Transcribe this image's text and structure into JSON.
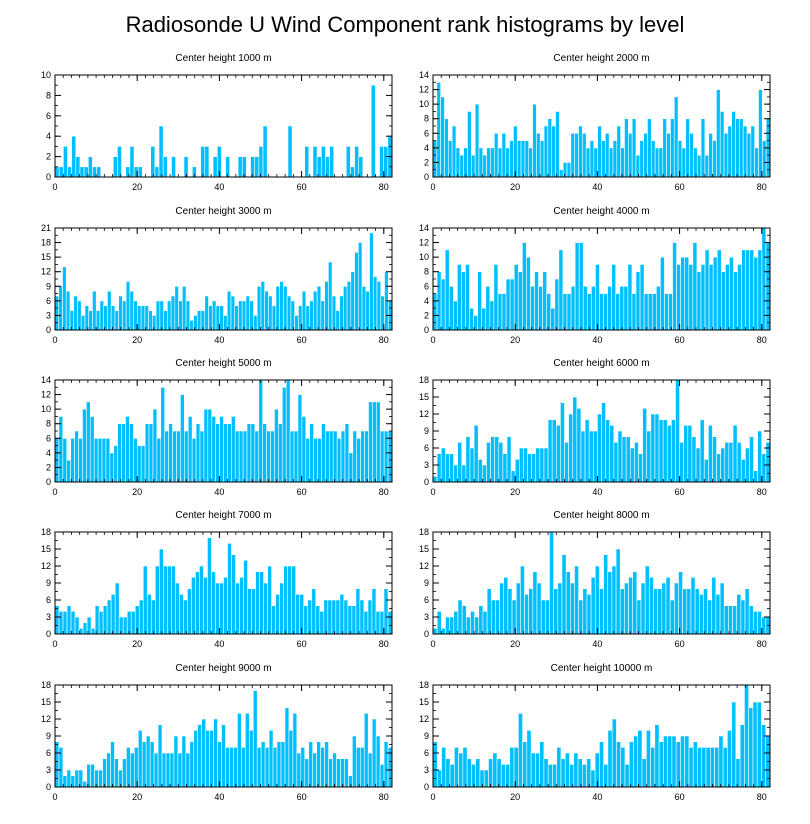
{
  "title": "Radiosonde U Wind Component rank histograms by level",
  "colors": {
    "bar": "#00bfff",
    "bar_edge": "#ffffff",
    "axis": "#000000"
  },
  "chart_data": [
    {
      "type": "bar",
      "title": "Center height 1000 m",
      "xlim": [
        0,
        82
      ],
      "ylim": [
        0,
        10
      ],
      "xticks": [
        0,
        20,
        40,
        60,
        80
      ],
      "yticks": [
        0,
        2,
        4,
        6,
        8,
        10
      ],
      "values": [
        1,
        1,
        3,
        1,
        4,
        2,
        1,
        1,
        2,
        1,
        1,
        0,
        0,
        0,
        2,
        3,
        0,
        1,
        3,
        1,
        1,
        0,
        0,
        3,
        1,
        5,
        2,
        0,
        2,
        0,
        0,
        2,
        0,
        1,
        0,
        3,
        3,
        0,
        2,
        3,
        0,
        2,
        0,
        0,
        2,
        2,
        0,
        2,
        2,
        3,
        5,
        0,
        0,
        0,
        0,
        0,
        5,
        0,
        0,
        0,
        3,
        0,
        3,
        2,
        3,
        2,
        3,
        0,
        0,
        0,
        3,
        1,
        3,
        2,
        0,
        0,
        9,
        0,
        3,
        3,
        4
      ]
    },
    {
      "type": "bar",
      "title": "Center height 2000 m",
      "xlim": [
        0,
        82
      ],
      "ylim": [
        0,
        14
      ],
      "xticks": [
        0,
        20,
        40,
        60,
        80
      ],
      "yticks": [
        0,
        2,
        4,
        6,
        8,
        10,
        12,
        14
      ],
      "values": [
        5,
        13,
        11,
        8,
        5,
        7,
        4,
        3,
        4,
        9,
        3,
        10,
        4,
        3,
        4,
        4,
        6,
        4,
        6,
        4,
        5,
        7,
        5,
        5,
        5,
        4,
        10,
        6,
        5,
        7,
        8,
        7,
        9,
        1,
        2,
        2,
        6,
        6,
        7,
        6,
        4,
        5,
        4,
        7,
        5,
        6,
        4,
        5,
        7,
        4,
        8,
        6,
        8,
        3,
        5,
        6,
        8,
        5,
        4,
        4,
        8,
        6,
        8,
        11,
        5,
        4,
        8,
        6,
        4,
        3,
        8,
        3,
        6,
        5,
        12,
        9,
        6,
        7,
        9,
        8,
        8,
        7,
        6,
        7,
        4,
        12,
        5,
        8
      ]
    },
    {
      "type": "bar",
      "title": "Center height 3000 m",
      "xlim": [
        0,
        82
      ],
      "ylim": [
        0,
        21
      ],
      "xticks": [
        0,
        20,
        40,
        60,
        80
      ],
      "yticks": [
        0,
        3,
        6,
        9,
        12,
        15,
        18,
        21
      ],
      "values": [
        7,
        9,
        13,
        8,
        4,
        7,
        6,
        3,
        5,
        4,
        8,
        4,
        6,
        5,
        8,
        5,
        4,
        7,
        6,
        10,
        8,
        6,
        5,
        5,
        5,
        4,
        3,
        6,
        6,
        4,
        6,
        7,
        9,
        6,
        9,
        6,
        2,
        3,
        4,
        4,
        7,
        5,
        6,
        5,
        5,
        3,
        8,
        7,
        5,
        6,
        6,
        7,
        6,
        3,
        9,
        10,
        8,
        7,
        5,
        9,
        10,
        9,
        7,
        6,
        3,
        5,
        8,
        5,
        6,
        8,
        9,
        6,
        10,
        14,
        7,
        4,
        7,
        9,
        10,
        12,
        16,
        18,
        9,
        8,
        20,
        11,
        10,
        7,
        12,
        6
      ]
    },
    {
      "type": "bar",
      "title": "Center height 4000 m",
      "xlim": [
        0,
        82
      ],
      "ylim": [
        0,
        14
      ],
      "xticks": [
        0,
        20,
        40,
        60,
        80
      ],
      "yticks": [
        0,
        2,
        4,
        6,
        8,
        10,
        12,
        14
      ],
      "values": [
        5,
        8,
        7,
        11,
        6,
        4,
        9,
        8,
        9,
        3,
        2,
        8,
        3,
        6,
        4,
        9,
        5,
        5,
        7,
        7,
        9,
        8,
        12,
        10,
        6,
        8,
        6,
        8,
        5,
        3,
        7,
        11,
        5,
        5,
        6,
        12,
        12,
        6,
        5,
        6,
        9,
        5,
        5,
        6,
        9,
        5,
        6,
        6,
        9,
        5,
        8,
        9,
        5,
        5,
        5,
        6,
        10,
        5,
        5,
        12,
        9,
        10,
        10,
        9,
        12,
        8,
        9,
        11,
        9,
        10,
        11,
        8,
        9,
        10,
        8,
        9,
        11,
        11,
        11,
        10,
        11,
        14,
        12
      ]
    },
    {
      "type": "bar",
      "title": "Center height 5000 m",
      "xlim": [
        0,
        82
      ],
      "ylim": [
        0,
        14
      ],
      "xticks": [
        0,
        20,
        40,
        60,
        80
      ],
      "yticks": [
        0,
        2,
        4,
        6,
        8,
        10,
        12,
        14
      ],
      "values": [
        6,
        9,
        6,
        3,
        6,
        7,
        6,
        10,
        11,
        9,
        6,
        6,
        6,
        6,
        4,
        5,
        8,
        8,
        9,
        8,
        6,
        5,
        5,
        8,
        8,
        10,
        6,
        13,
        7,
        8,
        7,
        7,
        12,
        7,
        9,
        6,
        8,
        7,
        10,
        10,
        9,
        8,
        9,
        8,
        8,
        9,
        7,
        7,
        7,
        8,
        8,
        7,
        14,
        8,
        7,
        7,
        10,
        8,
        13,
        14,
        7,
        7,
        12,
        9,
        6,
        8,
        6,
        6,
        8,
        7,
        7,
        7,
        6,
        7,
        8,
        4,
        7,
        6,
        7,
        7,
        11,
        11,
        11,
        7,
        7,
        7
      ]
    },
    {
      "type": "bar",
      "title": "Center height 6000 m",
      "xlim": [
        0,
        82
      ],
      "ylim": [
        0,
        18
      ],
      "xticks": [
        0,
        20,
        40,
        60,
        80
      ],
      "yticks": [
        0,
        3,
        6,
        9,
        12,
        15,
        18
      ],
      "values": [
        1,
        5,
        6,
        5,
        5,
        3,
        7,
        3,
        8,
        6,
        10,
        4,
        3,
        7,
        8,
        8,
        7,
        5,
        8,
        2,
        4,
        6,
        6,
        5,
        5,
        6,
        6,
        6,
        11,
        11,
        10,
        14,
        7,
        12,
        15,
        13,
        9,
        11,
        9,
        9,
        12,
        14,
        11,
        10,
        7,
        9,
        8,
        8,
        6,
        7,
        5,
        13,
        9,
        12,
        12,
        11,
        11,
        10,
        11,
        18,
        7,
        10,
        10,
        8,
        6,
        11,
        4,
        10,
        8,
        5,
        6,
        7,
        7,
        10,
        7,
        4,
        6,
        8,
        2,
        9,
        5,
        7
      ]
    },
    {
      "type": "bar",
      "title": "Center height 7000 m",
      "xlim": [
        0,
        82
      ],
      "ylim": [
        0,
        18
      ],
      "xticks": [
        0,
        20,
        40,
        60,
        80
      ],
      "yticks": [
        0,
        3,
        6,
        9,
        12,
        15,
        18
      ],
      "values": [
        5,
        4,
        4,
        5,
        4,
        3,
        1,
        2,
        3,
        1,
        5,
        4,
        5,
        6,
        7,
        9,
        3,
        3,
        4,
        4,
        5,
        6,
        12,
        7,
        6,
        12,
        15,
        12,
        12,
        12,
        9,
        7,
        6,
        8,
        10,
        11,
        12,
        10,
        17,
        11,
        9,
        9,
        10,
        16,
        14,
        9,
        10,
        13,
        8,
        8,
        11,
        11,
        9,
        12,
        5,
        7,
        9,
        12,
        12,
        12,
        7,
        7,
        5,
        6,
        8,
        5,
        4,
        6,
        6,
        6,
        6,
        7,
        6,
        5,
        5,
        8,
        6,
        4,
        6,
        8,
        4,
        4,
        8,
        4
      ]
    },
    {
      "type": "bar",
      "title": "Center height 8000 m",
      "xlim": [
        0,
        82
      ],
      "ylim": [
        0,
        18
      ],
      "xticks": [
        0,
        20,
        40,
        60,
        80
      ],
      "yticks": [
        0,
        3,
        6,
        9,
        12,
        15,
        18
      ],
      "values": [
        1,
        4,
        1,
        3,
        3,
        4,
        6,
        5,
        3,
        4,
        3,
        5,
        4,
        8,
        6,
        6,
        9,
        10,
        8,
        6,
        9,
        12,
        7,
        8,
        11,
        9,
        6,
        6,
        18,
        8,
        9,
        14,
        11,
        9,
        12,
        6,
        8,
        7,
        10,
        12,
        8,
        14,
        11,
        12,
        15,
        8,
        9,
        10,
        11,
        6,
        9,
        12,
        10,
        8,
        8,
        9,
        10,
        6,
        9,
        11,
        8,
        8,
        10,
        8,
        7,
        8,
        6,
        10,
        7,
        9,
        5,
        5,
        5,
        7,
        6,
        8,
        5,
        4,
        4,
        3,
        3
      ]
    },
    {
      "type": "bar",
      "title": "Center height 9000 m",
      "xlim": [
        0,
        82
      ],
      "ylim": [
        0,
        18
      ],
      "xticks": [
        0,
        20,
        40,
        60,
        80
      ],
      "yticks": [
        0,
        3,
        6,
        9,
        12,
        15,
        18
      ],
      "values": [
        8,
        7,
        2,
        3,
        2,
        3,
        3,
        1,
        4,
        4,
        3,
        3,
        5,
        6,
        8,
        5,
        3,
        5,
        7,
        6,
        7,
        10,
        8,
        9,
        8,
        6,
        11,
        6,
        6,
        6,
        9,
        6,
        9,
        6,
        8,
        10,
        11,
        12,
        10,
        10,
        12,
        8,
        11,
        7,
        7,
        7,
        13,
        7,
        13,
        10,
        17,
        7,
        8,
        7,
        10,
        7,
        8,
        8,
        14,
        10,
        13,
        6,
        7,
        5,
        8,
        6,
        8,
        7,
        8,
        5,
        6,
        5,
        5,
        5,
        2,
        9,
        7,
        7,
        13,
        6,
        12,
        9,
        4,
        8,
        7
      ]
    },
    {
      "type": "bar",
      "title": "Center height 10000 m",
      "xlim": [
        0,
        82
      ],
      "ylim": [
        0,
        18
      ],
      "xticks": [
        0,
        20,
        40,
        60,
        80
      ],
      "yticks": [
        0,
        3,
        6,
        9,
        12,
        15,
        18
      ],
      "values": [
        8,
        3,
        7,
        5,
        4,
        7,
        6,
        7,
        5,
        4,
        5,
        3,
        3,
        5,
        6,
        5,
        4,
        4,
        7,
        7,
        13,
        8,
        10,
        6,
        6,
        8,
        5,
        4,
        4,
        7,
        5,
        6,
        4,
        6,
        5,
        4,
        5,
        3,
        6,
        8,
        4,
        10,
        12,
        8,
        7,
        4,
        8,
        9,
        10,
        5,
        10,
        7,
        11,
        8,
        9,
        9,
        9,
        8,
        9,
        9,
        7,
        8,
        7,
        7,
        7,
        7,
        7,
        9,
        7,
        10,
        15,
        5,
        11,
        18,
        14,
        15,
        15,
        11,
        9
      ]
    }
  ]
}
